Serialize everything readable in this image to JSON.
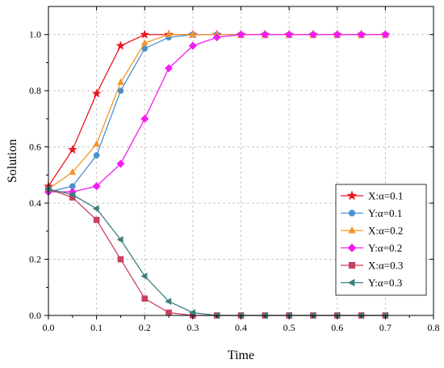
{
  "chart_data": {
    "type": "line",
    "xlabel": "Time",
    "ylabel": "Solution",
    "xlim": [
      0.0,
      0.8
    ],
    "ylim": [
      0.0,
      1.1
    ],
    "grid": true,
    "legend_position": "bottom-right",
    "x_ticks": [
      "0.0",
      "0.1",
      "0.2",
      "0.3",
      "0.4",
      "0.5",
      "0.6",
      "0.7",
      "0.8"
    ],
    "y_ticks": [
      "0.0",
      "0.2",
      "0.4",
      "0.6",
      "0.8",
      "1.0"
    ],
    "x": [
      0.0,
      0.05,
      0.1,
      0.15,
      0.2,
      0.25,
      0.3,
      0.35,
      0.4,
      0.45,
      0.5,
      0.55,
      0.6,
      0.65,
      0.7
    ],
    "series": [
      {
        "name": "X:α=0.1",
        "color": "#e8171d",
        "marker": "star",
        "values": [
          0.46,
          0.59,
          0.79,
          0.96,
          1.0,
          1.0,
          1.0,
          1.0,
          1.0,
          1.0,
          1.0,
          1.0,
          1.0,
          1.0,
          1.0
        ]
      },
      {
        "name": "Y:α=0.1",
        "color": "#4a90d0",
        "marker": "circle",
        "values": [
          0.44,
          0.46,
          0.57,
          0.8,
          0.95,
          0.99,
          1.0,
          1.0,
          1.0,
          1.0,
          1.0,
          1.0,
          1.0,
          1.0,
          1.0
        ]
      },
      {
        "name": "X:α=0.2",
        "color": "#f2962b",
        "marker": "triangle-up",
        "values": [
          0.45,
          0.51,
          0.61,
          0.83,
          0.97,
          1.0,
          1.0,
          1.0,
          1.0,
          1.0,
          1.0,
          1.0,
          1.0,
          1.0,
          1.0
        ]
      },
      {
        "name": "Y:α=0.2",
        "color": "#f21cf2",
        "marker": "diamond",
        "values": [
          0.44,
          0.44,
          0.46,
          0.54,
          0.7,
          0.88,
          0.96,
          0.99,
          1.0,
          1.0,
          1.0,
          1.0,
          1.0,
          1.0,
          1.0
        ]
      },
      {
        "name": "X:α=0.3",
        "color": "#c94060",
        "marker": "square",
        "values": [
          0.45,
          0.42,
          0.34,
          0.2,
          0.06,
          0.01,
          0.0,
          0.0,
          0.0,
          0.0,
          0.0,
          0.0,
          0.0,
          0.0,
          0.0
        ]
      },
      {
        "name": "Y:α=0.3",
        "color": "#3d7f7f",
        "marker": "triangle-left",
        "values": [
          0.45,
          0.43,
          0.38,
          0.27,
          0.14,
          0.05,
          0.01,
          0.0,
          0.0,
          0.0,
          0.0,
          0.0,
          0.0,
          0.0,
          0.0
        ]
      }
    ]
  }
}
